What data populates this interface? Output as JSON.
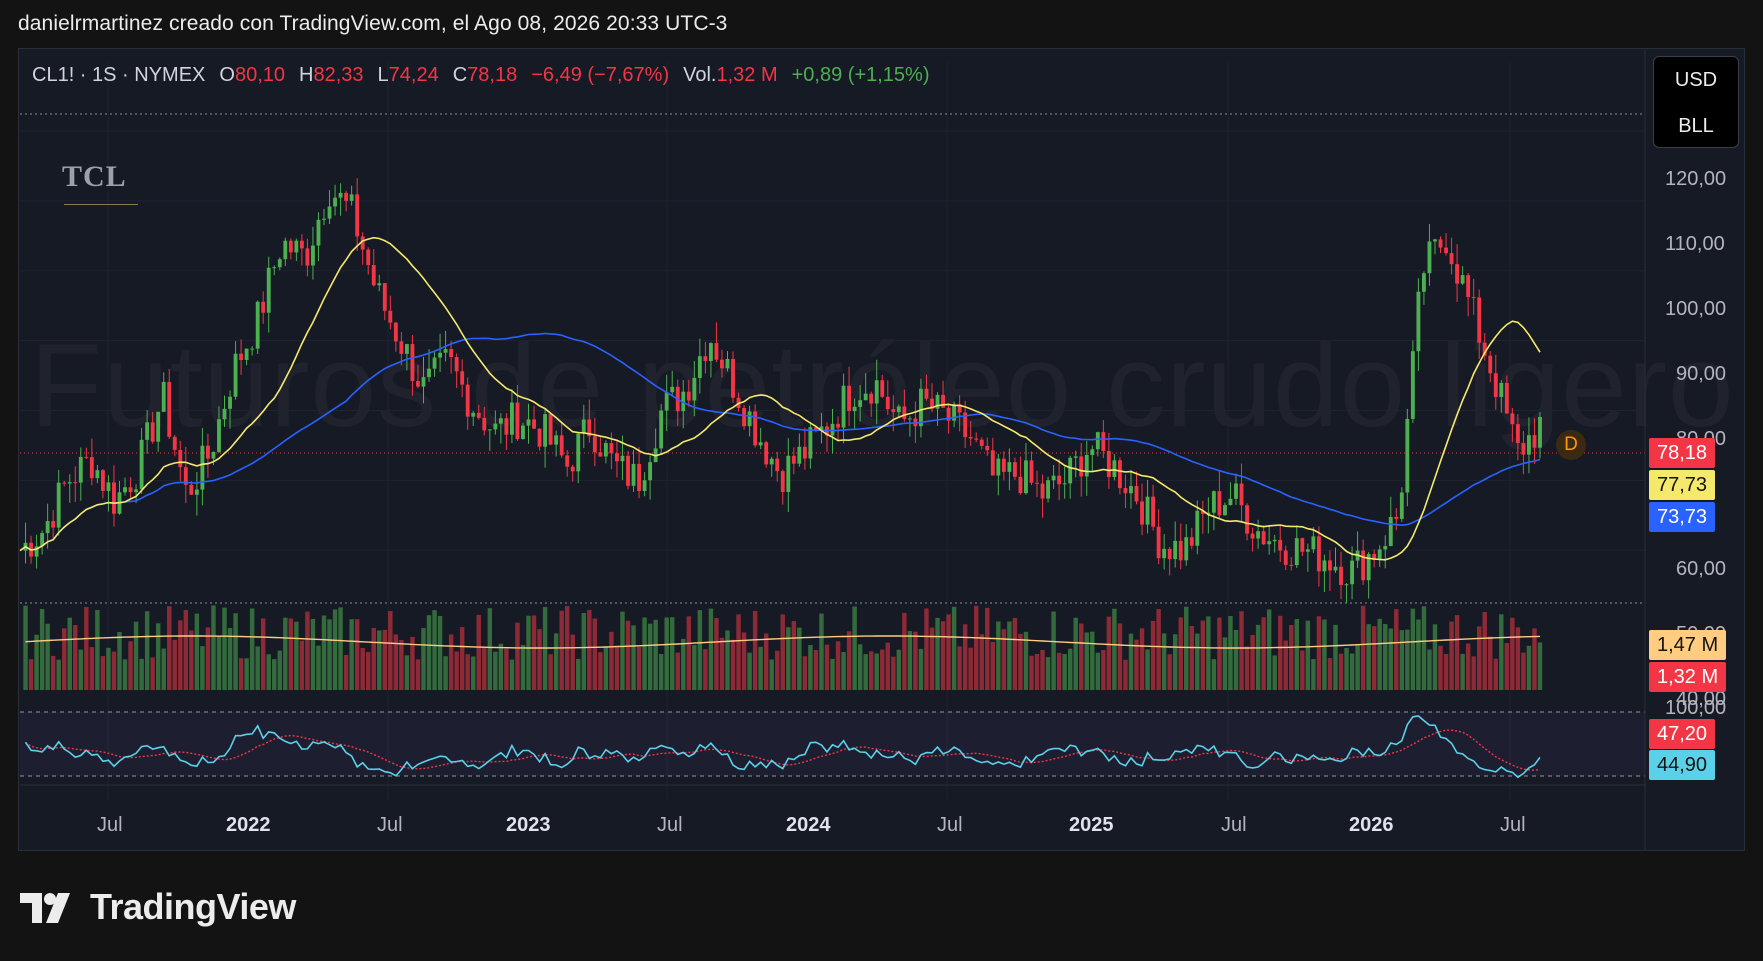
{
  "header": {
    "text": "danielrmartinez creado con TradingView.com, el Ago 08, 2026 20:33 UTC-3"
  },
  "legend": {
    "symbol": "CL1! · 1S · NYMEX",
    "open_key": "O",
    "open": "80,10",
    "high_key": "H",
    "high": "82,33",
    "low_key": "L",
    "low": "74,24",
    "close_key": "C",
    "close": "78,18",
    "change": "−6,49 (−7,67%)",
    "vol_key": "Vol.",
    "vol": "1,32 M",
    "vol_change": "+0,89 (+1,15%)"
  },
  "currency": {
    "line1": "USD",
    "line2": "BLL"
  },
  "watermark": "Futuros de petróleo crudo ligero",
  "logo_text": "TCL",
  "badge": "D",
  "brand": "TradingView",
  "price_axis": {
    "ticks": [
      "120,00",
      "110,00",
      "100,00",
      "90,00",
      "80,00",
      "60,00",
      "50,00",
      "40,00"
    ]
  },
  "rsi_axis": {
    "top": "100,00"
  },
  "labels": {
    "last_price": "78,18",
    "ma_short": "77,73",
    "ma_long": "73,73",
    "vol_ma": "1,47 M",
    "vol_last": "1,32 M",
    "rsi_ma": "47,20",
    "rsi": "44,90"
  },
  "colors": {
    "up": "#4caf50",
    "down": "#f23645",
    "ma_short": "#f5e96b",
    "ma_long": "#2962ff",
    "rsi": "#5ad1e8",
    "rsi_ma": "#f23645",
    "bg": "#161a25"
  },
  "time_axis": [
    "Jul",
    "2022",
    "Jul",
    "2023",
    "Jul",
    "2024",
    "Jul",
    "2025",
    "Jul",
    "2026",
    "Jul"
  ],
  "chart_data": {
    "type": "candlestick",
    "interval": "1S",
    "symbol": "CL1!",
    "x": [
      "2021-04",
      "2021-05",
      "2021-06",
      "2021-07",
      "2021-08",
      "2021-09",
      "2021-10",
      "2021-11",
      "2021-12",
      "2022-01",
      "2022-02",
      "2022-03",
      "2022-04",
      "2022-05",
      "2022-06",
      "2022-07",
      "2022-08",
      "2022-09",
      "2022-10",
      "2022-11",
      "2022-12",
      "2023-01",
      "2023-02",
      "2023-03",
      "2023-04",
      "2023-05",
      "2023-06",
      "2023-07",
      "2023-08",
      "2023-09",
      "2023-10",
      "2023-11",
      "2023-12",
      "2024-01",
      "2024-02",
      "2024-03",
      "2024-04",
      "2024-05",
      "2024-06",
      "2024-07",
      "2024-08",
      "2024-09",
      "2024-10",
      "2024-11",
      "2024-12",
      "2025-01",
      "2025-02",
      "2025-03",
      "2025-04",
      "2025-05",
      "2025-06",
      "2025-07",
      "2025-08",
      "2025-09",
      "2025-10",
      "2025-11",
      "2025-12",
      "2026-01",
      "2026-02",
      "2026-03",
      "2026-04",
      "2026-05",
      "2026-06",
      "2026-07",
      "2026-08"
    ],
    "close": [
      60,
      63,
      70,
      73,
      67,
      72,
      82,
      68,
      74,
      86,
      93,
      104,
      102,
      112,
      108,
      97,
      90,
      83,
      87,
      81,
      77,
      79,
      77,
      72,
      78,
      72,
      70,
      80,
      83,
      91,
      84,
      77,
      71,
      74,
      78,
      83,
      84,
      78,
      81,
      79,
      76,
      70,
      71,
      68,
      70,
      75,
      72,
      68,
      61,
      60,
      66,
      68,
      63,
      61,
      60,
      59,
      57,
      60,
      65,
      100,
      105,
      95,
      85,
      74,
      78
    ],
    "ylim": [
      40,
      125
    ],
    "ma_short_last": 77.73,
    "ma_long_last": 73.73,
    "volume_ma_last": "1,47 M",
    "volume_last": "1,32 M",
    "rsi_last": 44.9,
    "rsi_ma_last": 47.2
  }
}
